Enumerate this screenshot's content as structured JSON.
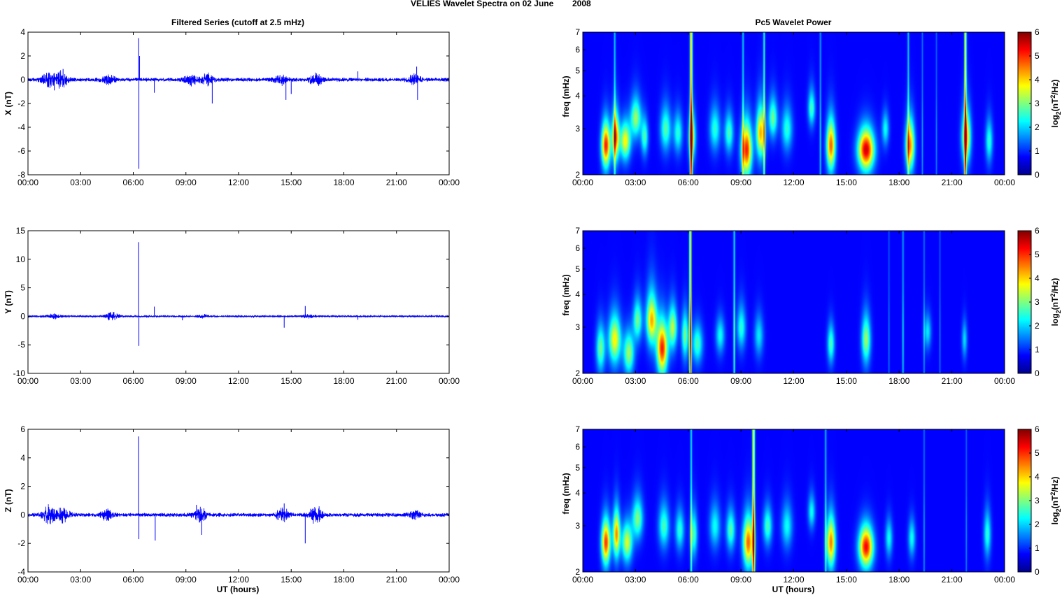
{
  "figure": {
    "suptitle_left": "VELIES Wavelet Spectra on 02 June",
    "suptitle_right": "2008",
    "left_title": "Filtered Series (cutoff at 2.5 mHz)",
    "right_title": "Pc5 Wavelet Power",
    "xlabel": "UT (hours)",
    "time_ticks": [
      "00:00",
      "03:00",
      "06:00",
      "09:00",
      "12:00",
      "15:00",
      "18:00",
      "21:00",
      "00:00"
    ],
    "freq_label": "freq (mHz)",
    "colorbar_label_prefix": "log",
    "colorbar_label_sub": "2",
    "colorbar_label_mid": "(nT",
    "colorbar_label_sup": "2",
    "colorbar_label_suffix": "/Hz)"
  },
  "colors": {
    "trace": "#0000ff",
    "background": "#00008f"
  },
  "chart_data": [
    {
      "type": "line",
      "name": "X",
      "ylabel": "X (nT)",
      "ylim": [
        -8,
        4
      ],
      "yticks": [
        -8,
        -6,
        -4,
        -2,
        0,
        2,
        4
      ],
      "xlim": [
        0,
        24
      ],
      "noise_amp": 0.12,
      "envelope": [
        [
          1.2,
          0.5
        ],
        [
          1.9,
          0.45
        ],
        [
          4.6,
          0.25
        ],
        [
          9.3,
          0.3
        ],
        [
          10.2,
          0.35
        ],
        [
          14.4,
          0.3
        ],
        [
          16.4,
          0.35
        ],
        [
          22.0,
          0.3
        ]
      ],
      "spikes": [
        [
          6.3,
          3.5
        ],
        [
          6.32,
          -7.5
        ],
        [
          6.36,
          2.0
        ],
        [
          7.2,
          -1.1
        ],
        [
          10.5,
          -2.0
        ],
        [
          14.7,
          -1.7
        ],
        [
          15.0,
          -1.2
        ],
        [
          18.8,
          0.7
        ],
        [
          22.15,
          1.1
        ],
        [
          22.2,
          -1.7
        ],
        [
          2.0,
          0.9
        ],
        [
          1.5,
          -0.9
        ]
      ]
    },
    {
      "type": "line",
      "name": "Y",
      "ylabel": "Y (nT)",
      "ylim": [
        -10,
        15
      ],
      "yticks": [
        -10,
        -5,
        0,
        5,
        10,
        15
      ],
      "xlim": [
        0,
        24
      ],
      "noise_amp": 0.12,
      "envelope": [
        [
          4.8,
          0.6
        ],
        [
          1.5,
          0.3
        ],
        [
          10.0,
          0.2
        ],
        [
          16.0,
          0.2
        ]
      ],
      "spikes": [
        [
          6.3,
          13.0
        ],
        [
          6.32,
          -5.2
        ],
        [
          7.2,
          1.7
        ],
        [
          8.8,
          -0.7
        ],
        [
          14.6,
          -2.0
        ],
        [
          15.8,
          1.8
        ],
        [
          18.8,
          -0.6
        ]
      ]
    },
    {
      "type": "line",
      "name": "Z",
      "ylabel": "Z (nT)",
      "ylim": [
        -4,
        6
      ],
      "yticks": [
        -4,
        -2,
        0,
        2,
        4,
        6
      ],
      "xlim": [
        0,
        24
      ],
      "noise_amp": 0.1,
      "envelope": [
        [
          1.2,
          0.45
        ],
        [
          2.0,
          0.4
        ],
        [
          4.5,
          0.25
        ],
        [
          9.8,
          0.4
        ],
        [
          14.5,
          0.35
        ],
        [
          16.4,
          0.45
        ],
        [
          22.0,
          0.2
        ]
      ],
      "spikes": [
        [
          6.3,
          5.5
        ],
        [
          6.32,
          -1.7
        ],
        [
          7.25,
          -1.8
        ],
        [
          9.9,
          -1.4
        ],
        [
          15.8,
          -2.0
        ],
        [
          14.6,
          0.8
        ],
        [
          9.6,
          0.7
        ]
      ]
    },
    {
      "type": "heatmap",
      "name": "X wavelet",
      "ylabel": "freq (mHz)",
      "ylim": [
        2,
        7
      ],
      "yticks": [
        2,
        3,
        4,
        5,
        6,
        7
      ],
      "xlim": [
        0,
        24
      ],
      "clim": [
        0,
        6
      ],
      "cticks": [
        0,
        1,
        2,
        3,
        4,
        5,
        6
      ],
      "blobs": [
        [
          1.3,
          2.6,
          0.25,
          0.45,
          5.0
        ],
        [
          1.85,
          2.8,
          0.2,
          0.5,
          4.5
        ],
        [
          2.4,
          2.7,
          0.3,
          0.4,
          3.5
        ],
        [
          3.0,
          3.3,
          0.3,
          0.5,
          2.8
        ],
        [
          3.5,
          2.8,
          0.2,
          0.4,
          2.2
        ],
        [
          4.7,
          3.0,
          0.3,
          0.5,
          2.3
        ],
        [
          5.4,
          2.9,
          0.25,
          0.45,
          2.0
        ],
        [
          6.2,
          2.8,
          0.2,
          0.5,
          3.0
        ],
        [
          7.5,
          3.0,
          0.3,
          0.5,
          2.0
        ],
        [
          8.3,
          2.9,
          0.25,
          0.45,
          2.2
        ],
        [
          9.3,
          2.5,
          0.3,
          0.5,
          5.0
        ],
        [
          10.1,
          2.9,
          0.25,
          0.55,
          4.0
        ],
        [
          10.8,
          3.3,
          0.25,
          0.5,
          2.5
        ],
        [
          11.6,
          3.0,
          0.3,
          0.5,
          2.0
        ],
        [
          13.0,
          3.6,
          0.2,
          0.5,
          2.2
        ],
        [
          14.1,
          2.6,
          0.25,
          0.5,
          4.5
        ],
        [
          16.1,
          2.5,
          0.45,
          0.4,
          5.5
        ],
        [
          17.2,
          3.0,
          0.2,
          0.4,
          1.8
        ],
        [
          18.6,
          2.6,
          0.25,
          0.5,
          4.2
        ],
        [
          21.8,
          2.8,
          0.25,
          0.55,
          3.8
        ],
        [
          23.1,
          2.7,
          0.2,
          0.45,
          2.0
        ]
      ],
      "streaks": [
        [
          6.15,
          0.07,
          5.5
        ],
        [
          21.75,
          0.06,
          5.0
        ],
        [
          10.3,
          0.05,
          2.8
        ],
        [
          1.8,
          0.05,
          2.0
        ],
        [
          9.1,
          0.05,
          2.0
        ],
        [
          13.5,
          0.05,
          1.5
        ],
        [
          18.5,
          0.05,
          2.0
        ],
        [
          19.3,
          0.04,
          1.2
        ],
        [
          20.1,
          0.04,
          1.0
        ]
      ]
    },
    {
      "type": "heatmap",
      "name": "Y wavelet",
      "ylabel": "freq (mHz)",
      "ylim": [
        2,
        7
      ],
      "yticks": [
        2,
        3,
        4,
        5,
        6,
        7
      ],
      "xlim": [
        0,
        24
      ],
      "clim": [
        0,
        6
      ],
      "cticks": [
        0,
        1,
        2,
        3,
        4,
        5,
        6
      ],
      "blobs": [
        [
          1.0,
          2.5,
          0.25,
          0.45,
          2.5
        ],
        [
          1.8,
          2.7,
          0.35,
          0.5,
          3.5
        ],
        [
          2.6,
          2.4,
          0.3,
          0.4,
          2.8
        ],
        [
          3.1,
          3.2,
          0.25,
          0.5,
          2.5
        ],
        [
          3.9,
          3.2,
          0.3,
          0.6,
          4.0
        ],
        [
          4.5,
          2.5,
          0.3,
          0.5,
          5.0
        ],
        [
          5.1,
          3.0,
          0.25,
          0.5,
          3.0
        ],
        [
          5.8,
          2.8,
          0.2,
          0.5,
          2.5
        ],
        [
          6.5,
          2.6,
          0.3,
          0.4,
          2.2
        ],
        [
          7.8,
          2.8,
          0.25,
          0.4,
          1.8
        ],
        [
          9.0,
          3.0,
          0.25,
          0.5,
          2.0
        ],
        [
          10.0,
          2.8,
          0.25,
          0.45,
          1.6
        ],
        [
          14.1,
          2.6,
          0.2,
          0.4,
          2.2
        ],
        [
          16.1,
          2.7,
          0.25,
          0.5,
          2.8
        ],
        [
          19.6,
          2.9,
          0.2,
          0.4,
          1.6
        ],
        [
          21.7,
          2.7,
          0.15,
          0.4,
          1.5
        ]
      ],
      "streaks": [
        [
          6.1,
          0.06,
          5.5
        ],
        [
          8.6,
          0.05,
          2.3
        ],
        [
          18.2,
          0.05,
          1.5
        ],
        [
          19.4,
          0.04,
          1.2
        ],
        [
          20.3,
          0.04,
          0.9
        ],
        [
          17.4,
          0.04,
          0.9
        ]
      ]
    },
    {
      "type": "heatmap",
      "name": "Z wavelet",
      "ylabel": "freq (mHz)",
      "ylim": [
        2,
        7
      ],
      "yticks": [
        2,
        3,
        4,
        5,
        6,
        7
      ],
      "xlim": [
        0,
        24
      ],
      "clim": [
        0,
        6
      ],
      "cticks": [
        0,
        1,
        2,
        3,
        4,
        5,
        6
      ],
      "blobs": [
        [
          1.3,
          2.6,
          0.25,
          0.45,
          4.8
        ],
        [
          1.9,
          2.8,
          0.2,
          0.5,
          4.2
        ],
        [
          2.5,
          2.6,
          0.3,
          0.4,
          3.2
        ],
        [
          3.1,
          3.2,
          0.3,
          0.5,
          2.6
        ],
        [
          4.6,
          3.0,
          0.3,
          0.5,
          2.2
        ],
        [
          5.5,
          2.9,
          0.25,
          0.45,
          2.0
        ],
        [
          6.3,
          2.8,
          0.2,
          0.5,
          2.2
        ],
        [
          7.5,
          3.0,
          0.3,
          0.5,
          1.8
        ],
        [
          8.4,
          2.9,
          0.25,
          0.45,
          2.3
        ],
        [
          9.4,
          2.6,
          0.3,
          0.5,
          4.5
        ],
        [
          10.5,
          3.0,
          0.25,
          0.45,
          2.2
        ],
        [
          11.6,
          3.0,
          0.3,
          0.5,
          1.8
        ],
        [
          13.0,
          3.4,
          0.2,
          0.45,
          1.8
        ],
        [
          14.1,
          2.6,
          0.25,
          0.5,
          4.3
        ],
        [
          16.1,
          2.5,
          0.4,
          0.4,
          5.2
        ],
        [
          17.4,
          2.7,
          0.2,
          0.4,
          1.8
        ],
        [
          18.7,
          2.7,
          0.2,
          0.4,
          1.8
        ],
        [
          23.0,
          2.8,
          0.2,
          0.5,
          2.0
        ]
      ],
      "streaks": [
        [
          9.7,
          0.07,
          5.0
        ],
        [
          6.15,
          0.05,
          2.3
        ],
        [
          13.8,
          0.05,
          1.8
        ],
        [
          19.4,
          0.04,
          1.2
        ],
        [
          21.8,
          0.04,
          1.0
        ]
      ]
    }
  ]
}
